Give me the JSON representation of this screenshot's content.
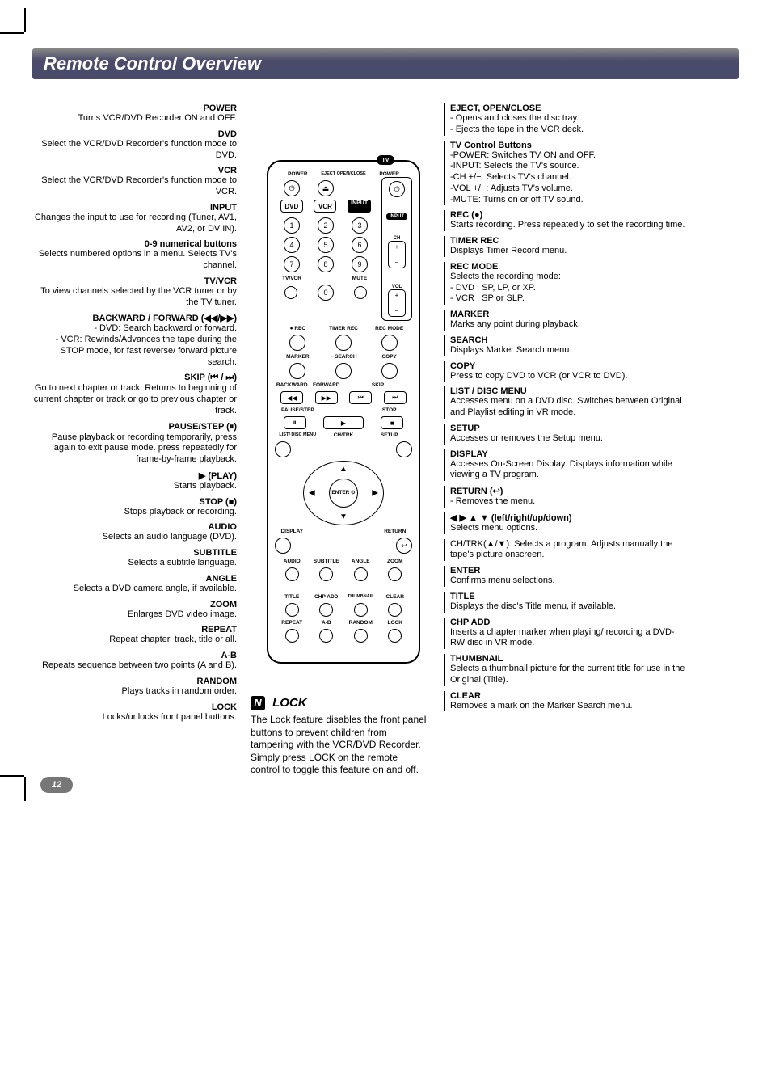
{
  "page": {
    "title": "Remote Control Overview",
    "page_number": "12",
    "colors": {
      "title_bg": "#4a4a6a",
      "text": "#000000",
      "bg": "#ffffff"
    }
  },
  "left": [
    {
      "h": "POWER",
      "d": "Turns VCR/DVD Recorder ON and OFF."
    },
    {
      "h": "DVD",
      "d": "Select the VCR/DVD Recorder's function mode to DVD."
    },
    {
      "h": "VCR",
      "d": "Select the VCR/DVD Recorder's function mode to VCR."
    },
    {
      "h": "INPUT",
      "d": "Changes the input to use for recording (Tuner, AV1, AV2, or DV IN)."
    },
    {
      "h": "0-9 numerical buttons",
      "d": "Selects numbered options in a menu. Selects TV's channel."
    },
    {
      "h": "TV/VCR",
      "d": "To view channels selected by the VCR tuner or by the TV tuner."
    },
    {
      "h": "BACKWARD / FORWARD (◀◀/▶▶)",
      "d": "- DVD: Search backward or forward.\n- VCR: Rewinds/Advances the tape during the STOP mode, for fast reverse/ forward picture search."
    },
    {
      "h": "SKIP (⏮ / ⏭)",
      "d": "Go to next chapter or track. Returns to beginning of current chapter or track or go to previous chapter or track."
    },
    {
      "h": "PAUSE/STEP (⏸)",
      "d": "Pause playback or recording  temporarily, press again to exit pause mode. press repeatedly for frame-by-frame playback."
    },
    {
      "h": "▶ (PLAY)",
      "d": "Starts playback."
    },
    {
      "h": "STOP (■)",
      "d": "Stops playback or recording."
    },
    {
      "h": "AUDIO",
      "d": "Selects an audio language (DVD)."
    },
    {
      "h": "SUBTITLE",
      "d": "Selects a subtitle language."
    },
    {
      "h": "ANGLE",
      "d": "Selects a DVD camera angle, if available."
    },
    {
      "h": "ZOOM",
      "d": "Enlarges DVD video image."
    },
    {
      "h": "REPEAT",
      "d": "Repeat chapter, track, title or all."
    },
    {
      "h": "A-B",
      "d": "Repeats sequence between two points (A and B)."
    },
    {
      "h": "RANDOM",
      "d": "Plays tracks in random order."
    },
    {
      "h": "LOCK",
      "d": "Locks/unlocks front panel buttons."
    }
  ],
  "right": [
    {
      "h": "EJECT, OPEN/CLOSE",
      "d": "- Opens and closes the disc tray.\n- Ejects the tape in the VCR deck."
    },
    {
      "h": "TV Control Buttons",
      "d": "-POWER: Switches TV ON and OFF.\n-INPUT: Selects the TV's source.\n-CH +/−: Selects TV's channel.\n-VOL +/−: Adjusts TV's volume.\n-MUTE: Turns on or off TV sound."
    },
    {
      "h": "REC (●)",
      "d": "Starts recording. Press repeatedly to set the recording time."
    },
    {
      "h": "TIMER REC",
      "d": "Displays Timer Record menu."
    },
    {
      "h": "REC MODE",
      "d": "Selects the recording mode:\n- DVD : SP, LP, or XP.\n- VCR : SP or SLP."
    },
    {
      "h": "MARKER",
      "d": "Marks any point during playback."
    },
    {
      "h": "SEARCH",
      "d": "Displays Marker Search menu."
    },
    {
      "h": "COPY",
      "d": "Press to copy DVD to VCR (or VCR to DVD)."
    },
    {
      "h": "LIST / DISC MENU",
      "d": "Accesses menu on a DVD disc. Switches between Original and Playlist editing in VR mode."
    },
    {
      "h": "SETUP",
      "d": "Accesses or removes the Setup menu."
    },
    {
      "h": "DISPLAY",
      "d": "Accesses On-Screen Display. Displays information while viewing a TV program."
    },
    {
      "h": "RETURN (↩)",
      "d": "-  Removes the menu."
    },
    {
      "h": "◀ ▶ ▲ ▼ (left/right/up/down)",
      "d": "Selects menu options."
    },
    {
      "h": "",
      "d": "CH/TRK(▲/▼): Selects a program. Adjusts manually the tape's picture onscreen."
    },
    {
      "h": "ENTER",
      "d": "Confirms menu selections."
    },
    {
      "h": "TITLE",
      "d": "Displays the disc's Title menu, if available."
    },
    {
      "h": "CHP ADD",
      "d": "Inserts a chapter marker when playing/ recording a DVD-RW disc in VR mode."
    },
    {
      "h": "THUMBNAIL",
      "d": "Selects a thumbnail picture for the current title for use in the Original (Title)."
    },
    {
      "h": "CLEAR",
      "d": "Removes a mark on the Marker Search menu."
    }
  ],
  "lock_note": {
    "title": "LOCK",
    "body": "The Lock feature disables the front panel buttons to prevent children from tampering with the VCR/DVD Recorder.\nSimply press LOCK on the remote control to toggle this feature on and off."
  },
  "remote": {
    "top_labels": [
      "POWER",
      "EJECT OPEN/CLOSE",
      "POWER"
    ],
    "mode_labels": [
      "DVD",
      "VCR",
      "INPUT",
      "INPUT"
    ],
    "tv_badge": "TV",
    "ch_label": "CH",
    "vol_label": "VOL",
    "mute_label": "MUTE",
    "tvvr_label": "TV/VCR",
    "rec_row": [
      "● REC",
      "TIMER REC",
      "REC MODE"
    ],
    "marker_row": [
      "MARKER",
      "− SEARCH",
      "COPY"
    ],
    "transport_row1": [
      "BACKWARD",
      "FORWARD",
      "SKIP"
    ],
    "transport_row2": [
      "PAUSE/STEP",
      "",
      "STOP"
    ],
    "menu_row": [
      "LIST/ DISC MENU",
      "CH/TRK",
      "SETUP"
    ],
    "enter_label": "ENTER ⊙",
    "display_label": "DISPLAY",
    "return_label": "RETURN",
    "audio_row": [
      "AUDIO",
      "SUBTITLE",
      "ANGLE",
      "ZOOM"
    ],
    "title_row": [
      "TITLE",
      "CHP ADD",
      "THUMBNAIL",
      "CLEAR"
    ],
    "repeat_row": [
      "REPEAT",
      "A-B",
      "RANDOM",
      "LOCK"
    ]
  }
}
